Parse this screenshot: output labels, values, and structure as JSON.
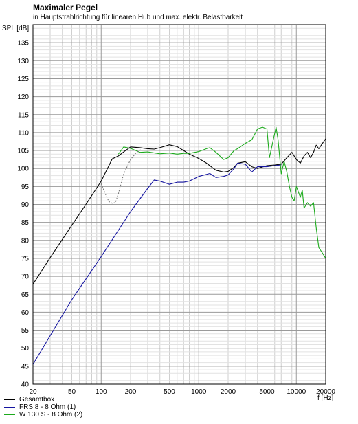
{
  "chart_data": {
    "type": "line",
    "title": "Maximaler Pegel",
    "subtitle": "in Hauptstrahlrichtung für linearen Hub und max. elektr. Belastbarkeit",
    "ylabel": "SPL [dB]",
    "xlabel": "f [Hz]",
    "xscale": "log",
    "xlim": [
      20,
      20000
    ],
    "ylim": [
      40,
      140
    ],
    "grid": true,
    "legend_position": "bottom-left",
    "x_ticks": [
      {
        "v": 20,
        "label": "20"
      },
      {
        "v": 50,
        "label": "50"
      },
      {
        "v": 100,
        "label": "100"
      },
      {
        "v": 200,
        "label": "200"
      },
      {
        "v": 500,
        "label": "500"
      },
      {
        "v": 1000,
        "label": "1000"
      },
      {
        "v": 2000,
        "label": "2000"
      },
      {
        "v": 5000,
        "label": "5000"
      },
      {
        "v": 10000,
        "label": "10000"
      },
      {
        "v": 20000,
        "label": "20000"
      }
    ],
    "y_ticks": [
      40,
      45,
      50,
      55,
      60,
      65,
      70,
      75,
      80,
      85,
      90,
      95,
      100,
      105,
      110,
      115,
      120,
      125,
      130,
      135
    ],
    "series": [
      {
        "name": "Gesamtbox",
        "color": "#000000",
        "x": [
          20,
          30,
          50,
          70,
          100,
          130,
          150,
          170,
          200,
          250,
          300,
          350,
          400,
          500,
          600,
          700,
          800,
          1000,
          1200,
          1500,
          1800,
          2000,
          2300,
          2500,
          3000,
          3500,
          4000,
          5000,
          6000,
          7000,
          8000,
          9000,
          10000,
          11000,
          12000,
          13000,
          14000,
          15000,
          16000,
          17000,
          18000,
          20000
        ],
        "y": [
          67.8,
          75.2,
          84.2,
          90.1,
          96.5,
          102.7,
          103.5,
          104.6,
          106.0,
          105.8,
          105.5,
          105.4,
          105.8,
          106.6,
          106.1,
          105.0,
          104.0,
          102.8,
          101.5,
          99.5,
          99.0,
          99.2,
          100.3,
          101.5,
          101.9,
          100.5,
          100.0,
          100.8,
          101.0,
          101.2,
          103.0,
          104.5,
          102.5,
          101.5,
          103.5,
          104.5,
          103.0,
          104.5,
          106.5,
          105.5,
          106.5,
          108.3
        ]
      },
      {
        "name": "FRS 8 - 8 Ohm (1)",
        "color": "#1515a0",
        "x": [
          20,
          50,
          100,
          200,
          300,
          350,
          400,
          500,
          600,
          700,
          800,
          1000,
          1300,
          1500,
          1800,
          2000,
          2300,
          2500,
          3000,
          3500,
          4000,
          5000,
          6000,
          7000
        ],
        "y": [
          45.5,
          63.5,
          75.5,
          88.0,
          94.5,
          96.8,
          96.5,
          95.6,
          96.2,
          96.2,
          96.5,
          97.8,
          98.6,
          97.5,
          97.8,
          98.2,
          100.0,
          101.5,
          101.2,
          99.0,
          100.5,
          100.5,
          100.8,
          101.0
        ]
      },
      {
        "name": "W 130 S - 8 Ohm (2)",
        "color": "#1caa1c",
        "x": [
          150,
          170,
          200,
          250,
          300,
          400,
          500,
          600,
          700,
          800,
          1000,
          1200,
          1300,
          1500,
          1800,
          2000,
          2300,
          2500,
          3000,
          3500,
          4000,
          4500,
          5000,
          5300,
          5800,
          6200,
          6500,
          7000,
          7500,
          8000,
          8500,
          9000,
          9500,
          10000,
          11000,
          11500,
          12000,
          13000,
          14000,
          15000,
          16000,
          17000,
          18000,
          19000,
          20000
        ],
        "y": [
          104.0,
          106.0,
          105.6,
          104.5,
          104.6,
          104.1,
          104.3,
          104.0,
          104.2,
          104.2,
          104.7,
          105.5,
          105.8,
          104.5,
          102.5,
          103.0,
          105.0,
          105.5,
          107.0,
          108.0,
          111.0,
          111.5,
          111.0,
          103.0,
          108.0,
          111.5,
          108.0,
          98.5,
          102.0,
          99.0,
          95.0,
          92.0,
          91.0,
          95.0,
          92.0,
          94.0,
          89.0,
          90.5,
          89.5,
          90.5,
          83.5,
          78.0,
          77.0,
          76.0,
          75.0
        ]
      },
      {
        "name": "",
        "color": "#777777",
        "dashed": true,
        "x": [
          100,
          110,
          120,
          130,
          140,
          150,
          170,
          200,
          230,
          260
        ],
        "y": [
          95.8,
          93.0,
          90.8,
          90.3,
          90.5,
          93.0,
          98.5,
          102.5,
          104.5,
          105.4
        ]
      }
    ]
  }
}
